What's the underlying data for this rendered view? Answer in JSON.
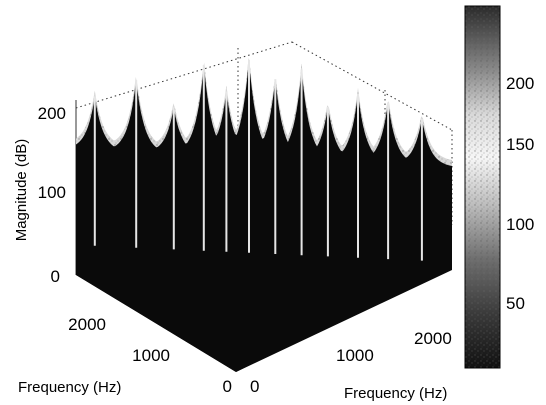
{
  "chart_data": {
    "type": "surface3d",
    "title": "",
    "zlabel": "Magnitude (dB)",
    "xlabel": "Frequency (Hz)",
    "ylabel": "Frequency (Hz)",
    "zlim": [
      0,
      240
    ],
    "ztick_labels": [
      "0",
      "100",
      "200"
    ],
    "xtick_labels": [
      "0",
      "1000",
      "2000"
    ],
    "ytick_labels": [
      "0",
      "1000",
      "2000"
    ],
    "colorbar": {
      "range": [
        0,
        240
      ],
      "tick_labels": [
        "50",
        "100",
        "150",
        "200"
      ],
      "colormap": "gray"
    },
    "ridge_profile": {
      "description_free_values": true,
      "baseline": 75,
      "peaks": [
        {
          "pos": 0.05,
          "value": 150
        },
        {
          "pos": 0.16,
          "value": 175
        },
        {
          "pos": 0.26,
          "value": 140
        },
        {
          "pos": 0.34,
          "value": 200
        },
        {
          "pos": 0.4,
          "value": 165
        },
        {
          "pos": 0.46,
          "value": 210
        },
        {
          "pos": 0.53,
          "value": 185
        },
        {
          "pos": 0.6,
          "value": 200
        },
        {
          "pos": 0.67,
          "value": 150
        },
        {
          "pos": 0.75,
          "value": 170
        },
        {
          "pos": 0.83,
          "value": 160
        },
        {
          "pos": 0.92,
          "value": 140
        }
      ]
    },
    "grid": true
  }
}
